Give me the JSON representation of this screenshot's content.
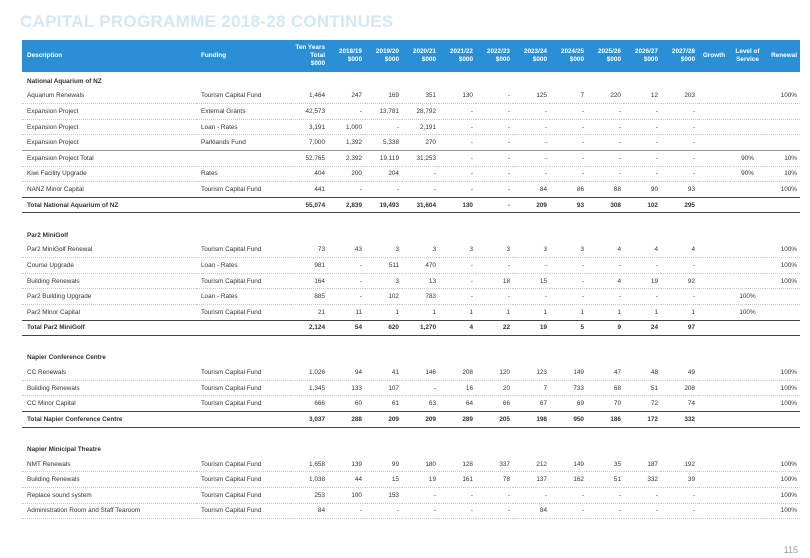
{
  "header": {
    "title": "CAPITAL PROGRAMME 2018-28 CONTINUES",
    "page_number": "115"
  },
  "table": {
    "columns": [
      "Description",
      "Funding",
      "Ten Years\nTotal\n$000",
      "2018/19\n$000",
      "2019/20\n$000",
      "2020/21\n$000",
      "2021/22\n$000",
      "2022/23\n$000",
      "2023/24\n$000",
      "2024/25\n$000",
      "2025/26\n$000",
      "2026/27\n$000",
      "2027/28\n$000",
      "Growth",
      "Level of\nService",
      "Renewal"
    ],
    "sections": [
      {
        "heading": "National Aquarium of NZ",
        "rows": [
          [
            "Aquarium Renewals",
            "Tourism Capital Fund",
            "1,464",
            "247",
            "169",
            "351",
            "130",
            "-",
            "125",
            "7",
            "220",
            "12",
            "203",
            null,
            null,
            "100%"
          ],
          [
            "Expansion Project",
            "External Grants",
            "42,573",
            "-",
            "13,781",
            "28,792",
            "-",
            "-",
            "-",
            "-",
            "-",
            "-",
            "-",
            null,
            null,
            null
          ],
          [
            "Expansion Project",
            "Loan - Rates",
            "3,191",
            "1,000",
            "-",
            "2,191",
            "-",
            "-",
            "-",
            "-",
            "-",
            "-",
            "-",
            null,
            null,
            null
          ],
          [
            "Expansion Project",
            "Parklands Fund",
            "7,000",
            "1,392",
            "5,338",
            "270",
            "-",
            "-",
            "-",
            "-",
            "-",
            "-",
            "-",
            null,
            null,
            null
          ],
          [
            "Expansion Project Total",
            null,
            "52,765",
            "2,392",
            "19,119",
            "31,253",
            "-",
            "-",
            "-",
            "-",
            "-",
            "-",
            "-",
            null,
            "90%",
            "10%"
          ],
          [
            "Kiwi Facility Upgrade",
            "Rates",
            "404",
            "200",
            "204",
            "-",
            "-",
            "-",
            "-",
            "-",
            "-",
            "-",
            "-",
            null,
            "90%",
            "10%"
          ],
          [
            "NANZ Minor Capital",
            "Tourism Capital Fund",
            "441",
            "-",
            "-",
            "-",
            "-",
            "-",
            "84",
            "86",
            "88",
            "90",
            "93",
            null,
            null,
            "100%"
          ]
        ],
        "total": [
          "Total National Aquarium of NZ",
          null,
          "55,074",
          "2,839",
          "19,493",
          "31,604",
          "130",
          "-",
          "209",
          "93",
          "308",
          "102",
          "295",
          null,
          null,
          null
        ]
      },
      {
        "heading": "Par2 MiniGolf",
        "rows": [
          [
            "Par2 MiniGolf Renewal",
            "Tourism Capital Fund",
            "73",
            "43",
            "3",
            "3",
            "3",
            "3",
            "3",
            "3",
            "4",
            "4",
            "4",
            null,
            null,
            "100%"
          ],
          [
            "Course Upgrade",
            "Loan - Rates",
            "981",
            "-",
            "511",
            "470",
            "-",
            "-",
            "-",
            "-",
            "-",
            "-",
            "-",
            null,
            null,
            "100%"
          ],
          [
            "Building Renewals",
            "Tourism Capital Fund",
            "164",
            "-",
            "3",
            "13",
            "-",
            "18",
            "15",
            "-",
            "4",
            "19",
            "92",
            null,
            null,
            "100%"
          ],
          [
            "Par2 Building Upgrade",
            "Loan - Rates",
            "885",
            "-",
            "102",
            "783",
            "-",
            "-",
            "-",
            "-",
            "-",
            "-",
            "-",
            null,
            "100%",
            null
          ],
          [
            "Par2 Minor Capital",
            "Tourism Capital Fund",
            "21",
            "11",
            "1",
            "1",
            "1",
            "1",
            "1",
            "1",
            "1",
            "1",
            "1",
            null,
            "100%",
            null
          ]
        ],
        "total": [
          "Total Par2 MiniGolf",
          null,
          "2,124",
          "54",
          "620",
          "1,270",
          "4",
          "22",
          "19",
          "5",
          "9",
          "24",
          "97",
          null,
          null,
          null
        ]
      },
      {
        "heading": "Napier Conference Centre",
        "rows": [
          [
            "CC Renewals",
            "Tourism Capital Fund",
            "1,026",
            "94",
            "41",
            "146",
            "208",
            "120",
            "123",
            "149",
            "47",
            "48",
            "49",
            null,
            null,
            "100%"
          ],
          [
            "Building Renewals",
            "Tourism Capital Fund",
            "1,345",
            "133",
            "107",
            "-",
            "16",
            "20",
            "7",
            "733",
            "68",
            "51",
            "208",
            null,
            null,
            "100%"
          ],
          [
            "CC Minor Capital",
            "Tourism Capital Fund",
            "666",
            "60",
            "61",
            "63",
            "64",
            "66",
            "67",
            "69",
            "70",
            "72",
            "74",
            null,
            null,
            "100%"
          ]
        ],
        "total": [
          "Total Napier Conference Centre",
          null,
          "3,037",
          "288",
          "209",
          "209",
          "289",
          "205",
          "198",
          "950",
          "186",
          "172",
          "332",
          null,
          null,
          null
        ]
      },
      {
        "heading": "Napier Minicipal Theatre",
        "rows": [
          [
            "NMT Renewals",
            "Tourism Capital Fund",
            "1,658",
            "139",
            "99",
            "180",
            "128",
            "337",
            "212",
            "149",
            "35",
            "187",
            "192",
            null,
            null,
            "100%"
          ],
          [
            "Building Renewals",
            "Tourism Capital Fund",
            "1,038",
            "44",
            "15",
            "19",
            "161",
            "78",
            "137",
            "162",
            "51",
            "332",
            "39",
            null,
            null,
            "100%"
          ],
          [
            "Replace sound system",
            "Tourism Capital Fund",
            "253",
            "100",
            "153",
            "-",
            "-",
            "-",
            "-",
            "-",
            "-",
            "-",
            "-",
            null,
            null,
            "100%"
          ],
          [
            "Administration Room and Staff Tearoom",
            "Tourism Capital Fund",
            "84",
            "-",
            "-",
            "-",
            "-",
            "-",
            "84",
            "-",
            "-",
            "-",
            "-",
            null,
            null,
            "100%"
          ]
        ]
      }
    ]
  }
}
